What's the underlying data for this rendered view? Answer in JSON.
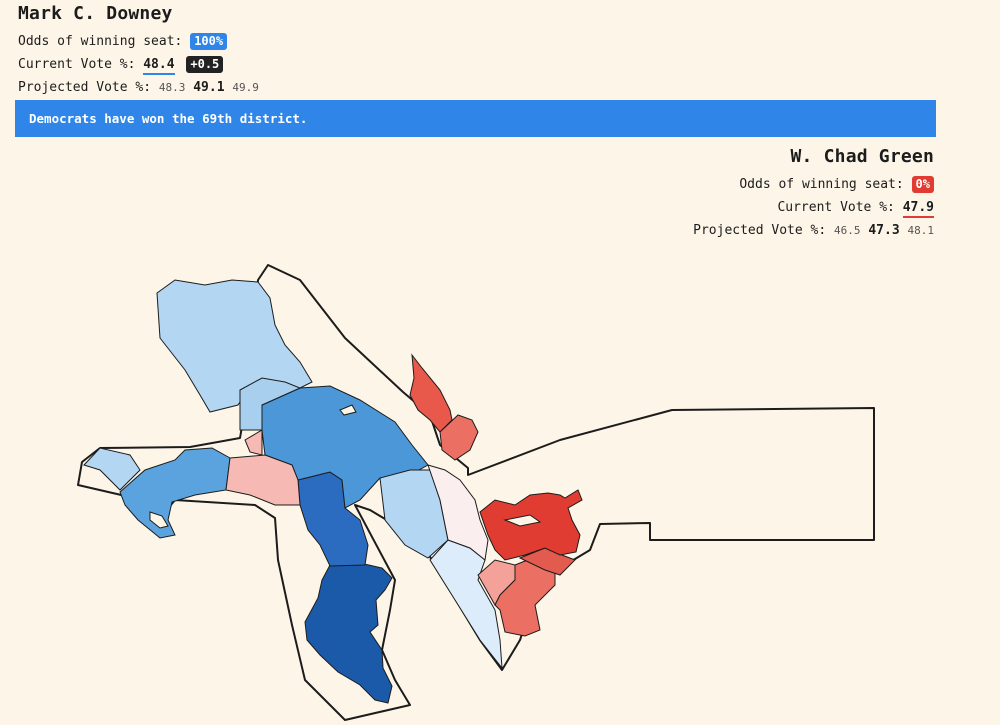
{
  "candidate_top": {
    "name": "Mark C. Downey",
    "odds_label": "Odds of winning seat:",
    "odds_value": "100%",
    "current_label": "Current Vote %:",
    "current_value": "48.4",
    "change_value": "+0.5",
    "projected_label": "Projected Vote %:",
    "projected_low": "48.3",
    "projected_mid": "49.1",
    "projected_high": "49.9",
    "color": "#2f86e8"
  },
  "banner": {
    "text": "Democrats have won the 69th district.",
    "color": "#2f86e8"
  },
  "candidate_bottom": {
    "name": "W. Chad Green",
    "odds_label": "Odds of winning seat:",
    "odds_value": "0%",
    "current_label": "Current Vote %:",
    "current_value": "47.9",
    "projected_label": "Projected Vote %:",
    "projected_low": "46.5",
    "projected_mid": "47.3",
    "projected_high": "48.1",
    "color": "#e03c31"
  },
  "map": {
    "description": "precinct choropleth of the 69th district",
    "colors": {
      "dem_strong": "#1a5aa8",
      "dem_lean": "#4c97d8",
      "dem_light": "#b3d6f3",
      "rep_strong": "#e03c31",
      "rep_lean": "#ec6f63",
      "rep_light": "#f6b9b4",
      "tossup": "#fbeeee"
    }
  }
}
